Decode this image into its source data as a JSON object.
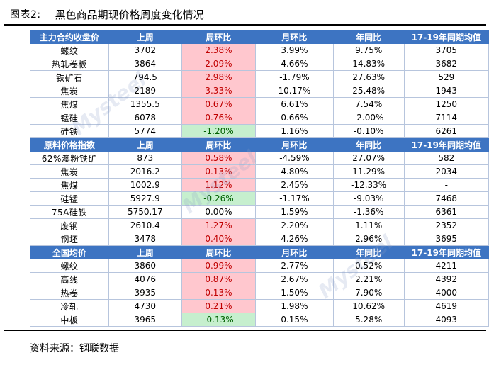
{
  "title": {
    "label": "图表2:",
    "text": "黑色商品期现价格周度变化情况"
  },
  "sections": [
    {
      "header": [
        "主力合约收盘价",
        "上周",
        "周环比",
        "月环比",
        "年同比",
        "17-19年同期均值"
      ],
      "rows": [
        {
          "name": "螺纹",
          "last_week": "3702",
          "wow": "2.38%",
          "wow_sign": "pos",
          "mom": "3.99%",
          "yoy": "9.75%",
          "avg": "3705"
        },
        {
          "name": "热轧卷板",
          "last_week": "3864",
          "wow": "2.09%",
          "wow_sign": "pos",
          "mom": "4.66%",
          "yoy": "14.83%",
          "avg": "3682"
        },
        {
          "name": "铁矿石",
          "last_week": "794.5",
          "wow": "2.98%",
          "wow_sign": "pos",
          "mom": "-1.79%",
          "yoy": "27.63%",
          "avg": "529"
        },
        {
          "name": "焦炭",
          "last_week": "2189",
          "wow": "3.33%",
          "wow_sign": "pos",
          "mom": "10.17%",
          "yoy": "25.48%",
          "avg": "1943"
        },
        {
          "name": "焦煤",
          "last_week": "1355.5",
          "wow": "0.67%",
          "wow_sign": "pos",
          "mom": "6.61%",
          "yoy": "7.54%",
          "avg": "1250"
        },
        {
          "name": "锰硅",
          "last_week": "6078",
          "wow": "0.76%",
          "wow_sign": "pos",
          "mom": "0.66%",
          "yoy": "-2.00%",
          "avg": "7114"
        },
        {
          "name": "硅铁",
          "last_week": "5774",
          "wow": "-1.20%",
          "wow_sign": "neg",
          "mom": "1.16%",
          "yoy": "-0.10%",
          "avg": "6261"
        }
      ]
    },
    {
      "header": [
        "原料价格指数",
        "上周",
        "周环比",
        "月环比",
        "年同比",
        "17-19年同期均值"
      ],
      "rows": [
        {
          "name": "62%澳粉铁矿",
          "last_week": "873",
          "wow": "0.58%",
          "wow_sign": "pos",
          "mom": "-4.59%",
          "yoy": "27.07%",
          "avg": "582"
        },
        {
          "name": "焦炭",
          "last_week": "2016.2",
          "wow": "0.13%",
          "wow_sign": "pos",
          "mom": "4.80%",
          "yoy": "11.29%",
          "avg": "2034"
        },
        {
          "name": "焦煤",
          "last_week": "1002.9",
          "wow": "1.12%",
          "wow_sign": "pos",
          "mom": "2.45%",
          "yoy": "-12.33%",
          "avg": "-"
        },
        {
          "name": "硅锰",
          "last_week": "5927.9",
          "wow": "-0.26%",
          "wow_sign": "neg",
          "mom": "-1.17%",
          "yoy": "-9.03%",
          "avg": "7468"
        },
        {
          "name": "75A硅铁",
          "last_week": "5750.17",
          "wow": "0.00%",
          "wow_sign": "none",
          "mom": "1.59%",
          "yoy": "-1.36%",
          "avg": "6361"
        },
        {
          "name": "废钢",
          "last_week": "2610.4",
          "wow": "1.27%",
          "wow_sign": "pos",
          "mom": "2.20%",
          "yoy": "1.11%",
          "avg": "2352"
        },
        {
          "name": "钢坯",
          "last_week": "3478",
          "wow": "0.40%",
          "wow_sign": "pos",
          "mom": "4.26%",
          "yoy": "2.96%",
          "avg": "3695"
        }
      ]
    },
    {
      "header": [
        "全国均价",
        "上周",
        "周环比",
        "月环比",
        "年同比",
        "17-19年同期均值"
      ],
      "rows": [
        {
          "name": "螺纹",
          "last_week": "3860",
          "wow": "0.99%",
          "wow_sign": "pos",
          "mom": "2.77%",
          "yoy": "0.52%",
          "avg": "4211"
        },
        {
          "name": "高线",
          "last_week": "4076",
          "wow": "0.87%",
          "wow_sign": "pos",
          "mom": "2.67%",
          "yoy": "2.21%",
          "avg": "4392"
        },
        {
          "name": "热卷",
          "last_week": "3935",
          "wow": "0.13%",
          "wow_sign": "pos",
          "mom": "1.50%",
          "yoy": "7.90%",
          "avg": "4000"
        },
        {
          "name": "冷轧",
          "last_week": "4730",
          "wow": "0.21%",
          "wow_sign": "pos",
          "mom": "1.98%",
          "yoy": "10.62%",
          "avg": "4619"
        },
        {
          "name": "中板",
          "last_week": "3965",
          "wow": "-0.13%",
          "wow_sign": "neg",
          "mom": "0.15%",
          "yoy": "5.28%",
          "avg": "4093"
        }
      ]
    }
  ],
  "watermark": "Mysteel",
  "source": "资料来源：钢联数据",
  "colors": {
    "header_bg": "#3d74c2",
    "pos_bg": "#ffc7ce",
    "pos_fg": "#c00000",
    "neg_bg": "#c6efce",
    "neg_fg": "#006100"
  }
}
